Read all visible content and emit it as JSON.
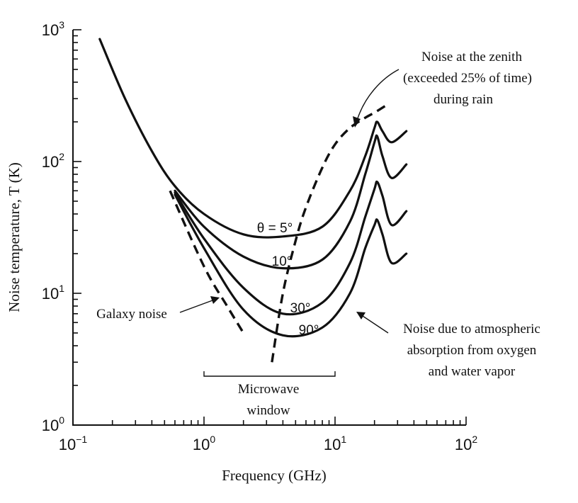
{
  "chart_data": {
    "type": "line",
    "title": "",
    "xlabel": "Frequency (GHz)",
    "ylabel": "Noise temperature, T (K)",
    "xscale": "log",
    "yscale": "log",
    "xlim": [
      0.1,
      100
    ],
    "ylim": [
      1,
      1000
    ],
    "grid": false,
    "x_ticks": [
      {
        "base": "10",
        "exp": "−1",
        "value": 0.1
      },
      {
        "base": "10",
        "exp": "0",
        "value": 1
      },
      {
        "base": "10",
        "exp": "1",
        "value": 10
      },
      {
        "base": "10",
        "exp": "2",
        "value": 100
      }
    ],
    "y_ticks": [
      {
        "base": "10",
        "exp": "0",
        "value": 1
      },
      {
        "base": "10",
        "exp": "1",
        "value": 10
      },
      {
        "base": "10",
        "exp": "2",
        "value": 100
      },
      {
        "base": "10",
        "exp": "3",
        "value": 1000
      }
    ],
    "series": [
      {
        "name": "θ = 5°",
        "style": "solid",
        "x": [
          0.16,
          0.25,
          0.4,
          0.6,
          1.0,
          2.0,
          4.0,
          8.0,
          13,
          17,
          20,
          21,
          23,
          27,
          35
        ],
        "y": [
          850,
          300,
          120,
          65,
          40,
          28,
          27,
          32,
          60,
          110,
          180,
          200,
          170,
          140,
          170
        ]
      },
      {
        "name": "10°",
        "style": "solid",
        "x": [
          0.6,
          1.0,
          2.0,
          4.0,
          8.0,
          13,
          17,
          20,
          21,
          23,
          27,
          35
        ],
        "y": [
          60,
          32,
          19,
          15.5,
          18,
          35,
          80,
          140,
          155,
          110,
          75,
          95
        ]
      },
      {
        "name": "30°",
        "style": "solid",
        "x": [
          0.6,
          1.0,
          2.0,
          4.0,
          8.0,
          13,
          17,
          20,
          21,
          23,
          27,
          35
        ],
        "y": [
          58,
          26,
          11,
          7,
          8.5,
          17,
          38,
          62,
          70,
          55,
          33,
          42
        ]
      },
      {
        "name": "90°",
        "style": "solid",
        "x": [
          0.6,
          1.0,
          2.0,
          4.0,
          8.0,
          13,
          17,
          20,
          21,
          23,
          27,
          35
        ],
        "y": [
          56,
          22,
          7.5,
          4.8,
          5.5,
          10,
          22,
          33,
          36,
          28,
          17,
          20
        ]
      },
      {
        "name": "Galaxy noise",
        "style": "dashed",
        "x": [
          0.55,
          1.0,
          1.5,
          2.0
        ],
        "y": [
          60,
          16,
          8,
          5
        ]
      },
      {
        "name": "Noise at the zenith (exceeded 25% of time) during rain",
        "style": "dashed",
        "x": [
          3.3,
          4.0,
          5.0,
          6.0,
          8.0,
          10,
          13,
          17,
          20,
          25
        ],
        "y": [
          3.0,
          10,
          25,
          45,
          90,
          135,
          180,
          215,
          235,
          270
        ]
      }
    ],
    "annotations": {
      "zenith": [
        "Noise at the zenith",
        "(exceeded 25% of time)",
        "during rain"
      ],
      "galaxy": "Galaxy noise",
      "atmospheric": [
        "Noise due to atmospheric",
        "absorption from oxygen",
        "and water vapor"
      ],
      "window": [
        "Microwave",
        "window"
      ],
      "window_range_ghz": [
        1,
        10
      ]
    }
  }
}
